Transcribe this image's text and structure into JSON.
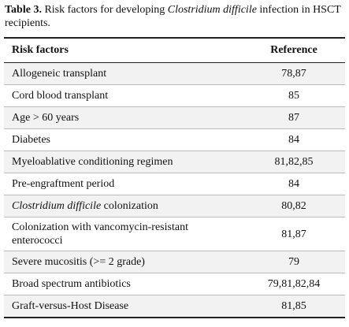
{
  "caption": {
    "label": "Table 3.",
    "text_before": " Risk factors for developing ",
    "italic": "Clostridium difficile",
    "text_after": " infection in HSCT recipients."
  },
  "table": {
    "headers": [
      "Risk factors",
      "Reference"
    ],
    "rows": [
      {
        "factor": "Allogeneic transplant",
        "reference": "78,87"
      },
      {
        "factor": "Cord blood transplant",
        "reference": "85"
      },
      {
        "factor": "Age > 60 years",
        "reference": "87"
      },
      {
        "factor": "Diabetes",
        "reference": "84"
      },
      {
        "factor": "Myeloablative conditioning regimen",
        "reference": "81,82,85"
      },
      {
        "factor": "Pre-engraftment period",
        "reference": "84"
      },
      {
        "factor_italic": "Clostridium difficile",
        "factor": " colonization",
        "reference": "80,82"
      },
      {
        "factor": "Colonization with vancomycin-resistant enterococci",
        "reference": "81,87"
      },
      {
        "factor": "Severe mucositis (>= 2 grade)",
        "reference": "79"
      },
      {
        "factor": "Broad spectrum antibiotics",
        "reference": "79,81,82,84"
      },
      {
        "factor": "Graft-versus-Host Disease",
        "reference": "81,85"
      }
    ]
  }
}
